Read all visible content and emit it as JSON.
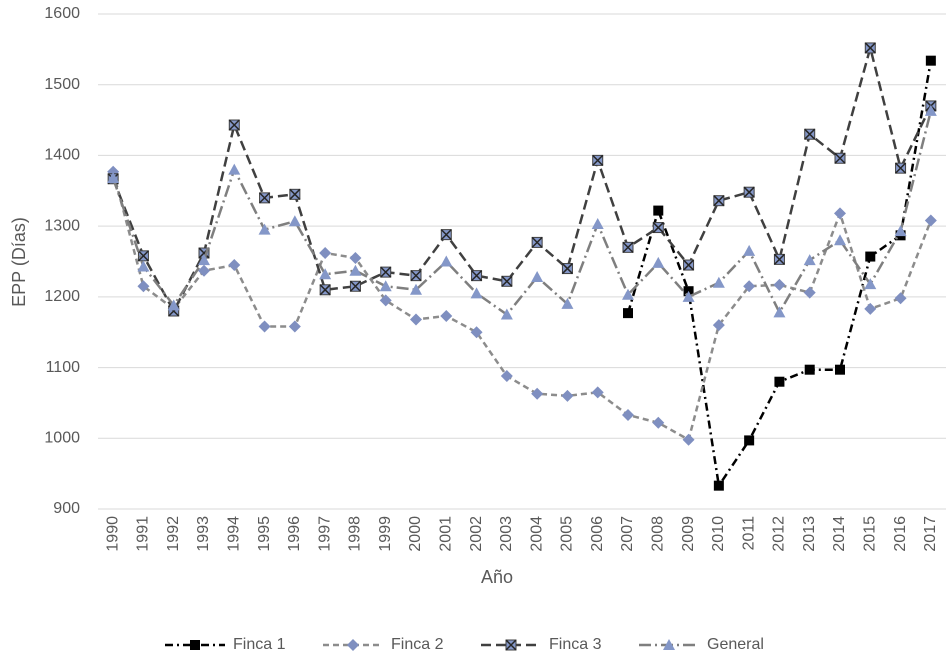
{
  "chart_data": {
    "type": "line",
    "y_label": "EPP (Días)",
    "x_label": "Año",
    "categories": [
      "1990",
      "1991",
      "1992",
      "1993",
      "1994",
      "1995",
      "1996",
      "1997",
      "1998",
      "1999",
      "2000",
      "2001",
      "2002",
      "2003",
      "2004",
      "2005",
      "2006",
      "2007",
      "2008",
      "2009",
      "2010",
      "2011",
      "2012",
      "2013",
      "2014",
      "2015",
      "2016",
      "2017"
    ],
    "ylim": [
      900,
      1600
    ],
    "yticks": [
      900,
      1000,
      1100,
      1200,
      1300,
      1400,
      1500,
      1600
    ],
    "grid": true,
    "legend": "bottom",
    "series": [
      {
        "name": "Finca 1",
        "color": "#000000",
        "marker_color": "#000000",
        "marker": "square",
        "dash": "8 4 2 4",
        "values": [
          null,
          null,
          null,
          null,
          null,
          null,
          null,
          null,
          null,
          null,
          null,
          null,
          null,
          null,
          null,
          null,
          null,
          1177,
          1322,
          1208,
          933,
          997,
          1080,
          1097,
          1097,
          1257,
          1287,
          1534
        ]
      },
      {
        "name": "Finca 2",
        "color": "#8c8c8c",
        "marker_color": "#7f8fc0",
        "marker": "diamond",
        "dash": "6 4",
        "values": [
          1377,
          1215,
          1183,
          1237,
          1245,
          1158,
          1158,
          1262,
          1255,
          1195,
          1168,
          1173,
          1150,
          1088,
          1063,
          1060,
          1065,
          1033,
          1022,
          998,
          1160,
          1215,
          1217,
          1206,
          1318,
          1183,
          1198,
          1308
        ]
      },
      {
        "name": "Finca 3",
        "color": "#404040",
        "marker_color": "#8497c8",
        "marker": "xsquare",
        "dash": "10 5",
        "values": [
          1367,
          1258,
          1180,
          1262,
          1443,
          1340,
          1345,
          1210,
          1215,
          1235,
          1230,
          1288,
          1230,
          1222,
          1277,
          1240,
          1393,
          1270,
          1298,
          1245,
          1336,
          1348,
          1253,
          1430,
          1396,
          1552,
          1382,
          1470
        ]
      },
      {
        "name": "General",
        "color": "#7f7f7f",
        "marker_color": "#8497c8",
        "marker": "triangle",
        "dash": "12 4 2 4",
        "values": [
          1368,
          1243,
          1188,
          1252,
          1380,
          1295,
          1307,
          1232,
          1237,
          1215,
          1210,
          1250,
          1205,
          1175,
          1228,
          1190,
          1303,
          1203,
          1248,
          1200,
          1220,
          1265,
          1178,
          1252,
          1280,
          1218,
          1293,
          1463
        ]
      }
    ]
  }
}
